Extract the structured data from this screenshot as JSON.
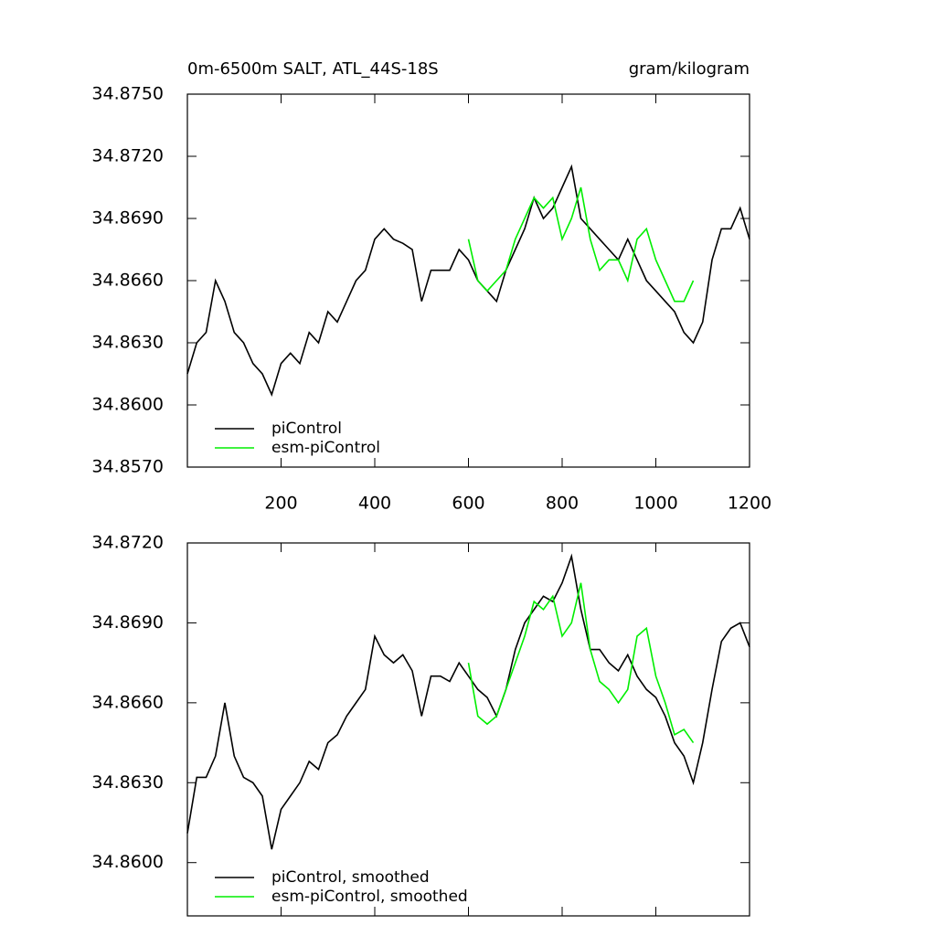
{
  "chart_data": [
    {
      "type": "line",
      "title": "0m-6500m SALT, ATL_44S-18S",
      "units": "gram/kilogram",
      "legend": "lower left",
      "x": [
        0,
        20,
        40,
        60,
        80,
        100,
        120,
        140,
        160,
        180,
        200,
        220,
        240,
        260,
        280,
        300,
        320,
        340,
        360,
        380,
        400,
        420,
        440,
        460,
        480,
        500,
        520,
        540,
        560,
        580,
        600,
        620,
        640,
        660,
        680,
        700,
        720,
        740,
        760,
        780,
        800,
        820,
        840,
        860,
        880,
        900,
        920,
        940,
        960,
        980,
        1000,
        1020,
        1040,
        1060,
        1080,
        1100,
        1120,
        1140,
        1160,
        1180,
        1200
      ],
      "series": [
        {
          "name": "piControl",
          "color": "#000000",
          "values": [
            34.8615,
            34.863,
            34.8635,
            34.866,
            34.865,
            34.8635,
            34.863,
            34.862,
            34.8615,
            34.8605,
            34.862,
            34.8625,
            34.862,
            34.8635,
            34.863,
            34.8645,
            34.864,
            34.865,
            34.866,
            34.8665,
            34.868,
            34.8685,
            34.868,
            34.8678,
            34.8675,
            34.865,
            34.8665,
            34.8665,
            34.8665,
            34.8675,
            34.867,
            34.866,
            34.8655,
            34.865,
            34.8665,
            34.8675,
            34.8685,
            34.87,
            34.869,
            34.8695,
            34.8705,
            34.8715,
            34.869,
            34.8685,
            34.868,
            34.8675,
            34.867,
            34.868,
            34.867,
            34.866,
            34.8655,
            34.865,
            34.8645,
            34.8635,
            34.863,
            34.864,
            34.867,
            34.8685,
            34.8685,
            34.8695,
            34.868
          ]
        },
        {
          "name": "esm-piControl",
          "color": "#00ee00",
          "values": [
            null,
            null,
            null,
            null,
            null,
            null,
            null,
            null,
            null,
            null,
            null,
            null,
            null,
            null,
            null,
            null,
            null,
            null,
            null,
            null,
            null,
            null,
            null,
            null,
            null,
            null,
            null,
            null,
            null,
            null,
            34.868,
            34.866,
            34.8655,
            34.866,
            34.8665,
            34.868,
            34.869,
            34.87,
            34.8695,
            34.87,
            34.868,
            34.869,
            34.8705,
            34.868,
            34.8665,
            34.867,
            34.867,
            34.866,
            34.868,
            34.8685,
            34.867,
            34.866,
            34.865,
            34.865,
            34.866,
            null,
            null,
            null,
            null,
            null,
            null
          ]
        }
      ],
      "xlim": [
        0,
        1200
      ],
      "xticks": [
        200,
        400,
        600,
        800,
        1000,
        1200
      ],
      "xtick_labels": true,
      "ylim": [
        34.857,
        34.875
      ],
      "yticks": [
        {
          "value": 34.857,
          "label": "34.8570"
        },
        {
          "value": 34.86,
          "label": "34.8600"
        },
        {
          "value": 34.863,
          "label": "34.8630"
        },
        {
          "value": 34.866,
          "label": "34.8660"
        },
        {
          "value": 34.869,
          "label": "34.8690"
        },
        {
          "value": 34.872,
          "label": "34.8720"
        },
        {
          "value": 34.875,
          "label": "34.8750"
        }
      ]
    },
    {
      "type": "line",
      "legend": "lower left",
      "x": [
        0,
        20,
        40,
        60,
        80,
        100,
        120,
        140,
        160,
        180,
        200,
        220,
        240,
        260,
        280,
        300,
        320,
        340,
        360,
        380,
        400,
        420,
        440,
        460,
        480,
        500,
        520,
        540,
        560,
        580,
        600,
        620,
        640,
        660,
        680,
        700,
        720,
        740,
        760,
        780,
        800,
        820,
        840,
        860,
        880,
        900,
        920,
        940,
        960,
        980,
        1000,
        1020,
        1040,
        1060,
        1080,
        1100,
        1120,
        1140,
        1160,
        1180,
        1200
      ],
      "series": [
        {
          "name": "piControl, smoothed",
          "color": "#000000",
          "values": [
            34.8611,
            34.8632,
            34.8632,
            34.864,
            34.866,
            34.864,
            34.8632,
            34.863,
            34.8625,
            34.8605,
            34.862,
            34.8625,
            34.863,
            34.8638,
            34.8635,
            34.8645,
            34.8648,
            34.8655,
            34.866,
            34.8665,
            34.8685,
            34.8678,
            34.8675,
            34.8678,
            34.8672,
            34.8655,
            34.867,
            34.867,
            34.8668,
            34.8675,
            34.867,
            34.8665,
            34.8662,
            34.8655,
            34.8665,
            34.868,
            34.869,
            34.8695,
            34.87,
            34.8698,
            34.8705,
            34.8715,
            34.8695,
            34.868,
            34.868,
            34.8675,
            34.8672,
            34.8678,
            34.867,
            34.8665,
            34.8662,
            34.8655,
            34.8645,
            34.864,
            34.863,
            34.8645,
            34.8665,
            34.8683,
            34.8688,
            34.869,
            34.8681
          ]
        },
        {
          "name": "esm-piControl, smoothed",
          "color": "#00ee00",
          "values": [
            null,
            null,
            null,
            null,
            null,
            null,
            null,
            null,
            null,
            null,
            null,
            null,
            null,
            null,
            null,
            null,
            null,
            null,
            null,
            null,
            null,
            null,
            null,
            null,
            null,
            null,
            null,
            null,
            null,
            null,
            34.8675,
            34.8655,
            34.8652,
            34.8655,
            34.8665,
            34.8675,
            34.8685,
            34.8698,
            34.8695,
            34.87,
            34.8685,
            34.869,
            34.8705,
            34.868,
            34.8668,
            34.8665,
            34.866,
            34.8665,
            34.8685,
            34.8688,
            34.867,
            34.866,
            34.8648,
            34.865,
            34.8645,
            null,
            null,
            null,
            null,
            null,
            null
          ]
        }
      ],
      "xlim": [
        0,
        1200
      ],
      "xticks": [
        200,
        400,
        600,
        800,
        1000,
        1200
      ],
      "xtick_labels": false,
      "ylim": [
        34.858,
        34.872
      ],
      "yticks": [
        {
          "value": 34.86,
          "label": "34.8600"
        },
        {
          "value": 34.863,
          "label": "34.8630"
        },
        {
          "value": 34.866,
          "label": "34.8660"
        },
        {
          "value": 34.869,
          "label": "34.8690"
        },
        {
          "value": 34.872,
          "label": "34.8720"
        }
      ]
    }
  ]
}
